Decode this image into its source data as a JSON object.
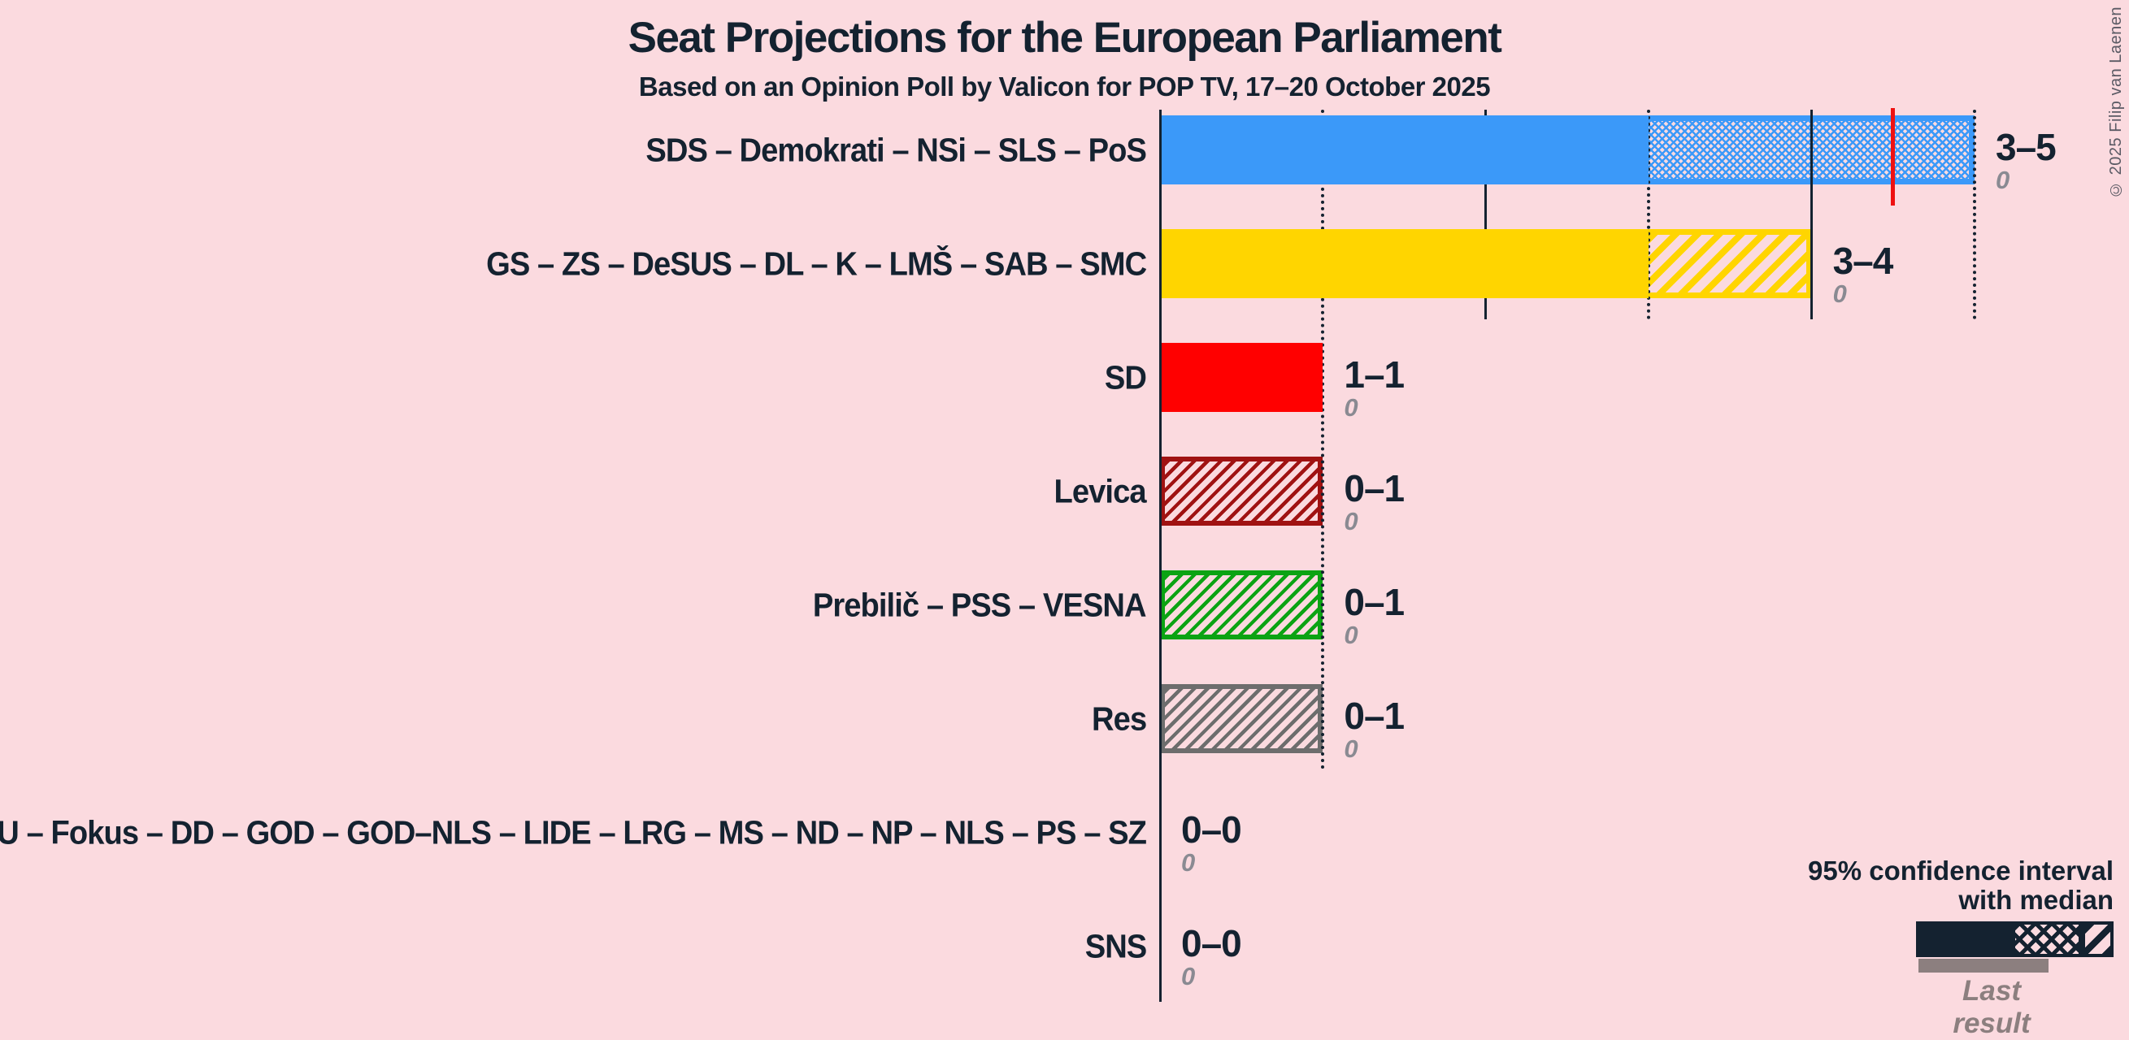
{
  "title": "Seat Projections for the European Parliament",
  "subtitle": "Based on an Opinion Poll by Valicon for POP TV, 17–20 October 2025",
  "copyright": "© 2025 Filip van Laenen",
  "colors": {
    "background": "#FBDADF",
    "text": "#142230",
    "last_result_gray": "#8A8A92",
    "legend_last_result_bar": "#8C7F7F",
    "majority_line_red": "#EE1111"
  },
  "legend": {
    "ci_line1": "95% confidence interval",
    "ci_line2": "with median",
    "last_result_label": "Last result"
  },
  "chart_data": {
    "type": "bar",
    "orientation": "horizontal",
    "title": "Seat Projections for the European Parliament",
    "subtitle": "Based on an Opinion Poll by Valicon for POP TV, 17–20 October 2025",
    "x_unit": "seats",
    "xlim": [
      0,
      5
    ],
    "majority_line_seats": 4.5,
    "gridlines": [
      {
        "seats": 0,
        "style": "solid",
        "role": "axis",
        "y_top": 135,
        "y_end": 1233
      },
      {
        "seats": 1,
        "style": "dotted",
        "y_top": 135,
        "y_end": 947
      },
      {
        "seats": 2,
        "style": "solid",
        "y_top": 135,
        "y_end": 393
      },
      {
        "seats": 3,
        "style": "dotted",
        "y_top": 135,
        "y_end": 393
      },
      {
        "seats": 4,
        "style": "solid",
        "y_top": 135,
        "y_end": 393
      },
      {
        "seats": 5,
        "style": "dotted",
        "y_top": 135,
        "y_end": 393
      }
    ],
    "rows": [
      {
        "label": "SDS – Demokrati – NSi – SLS – PoS",
        "color": "#3B99F9",
        "ci_low": 3,
        "median": 5,
        "ci_high": 5,
        "range_label": "3–5",
        "last_result": "0"
      },
      {
        "label": "GS – ZS – DeSUS – DL – K – LMŠ – SAB – SMC",
        "color": "#FFD500",
        "ci_low": 3,
        "median": 3,
        "ci_high": 4,
        "range_label": "3–4",
        "last_result": "0"
      },
      {
        "label": "SD",
        "color": "#FF0000",
        "ci_low": 1,
        "median": 1,
        "ci_high": 1,
        "range_label": "1–1",
        "last_result": "0"
      },
      {
        "label": "Levica",
        "color": "#A01212",
        "ci_low": 0,
        "median": 0,
        "ci_high": 1,
        "range_label": "0–1",
        "last_result": "0"
      },
      {
        "label": "Prebilič – PSS – VESNA",
        "color": "#0BA313",
        "ci_low": 0,
        "median": 0,
        "ci_high": 1,
        "range_label": "0–1",
        "last_result": "0"
      },
      {
        "label": "Res",
        "color": "#6D6D6D",
        "ci_low": 0,
        "median": 0,
        "ci_high": 1,
        "range_label": "0–1",
        "last_result": "0"
      },
      {
        "label": "GU – Fokus – DD – GOD – GOD–NLS – LIDE – LRG – MS – ND – NP – NLS – PS – SZ",
        "color": "#888888",
        "ci_low": 0,
        "median": 0,
        "ci_high": 0,
        "range_label": "0–0",
        "last_result": "0"
      },
      {
        "label": "SNS",
        "color": "#888888",
        "ci_low": 0,
        "median": 0,
        "ci_high": 0,
        "range_label": "0–0",
        "last_result": "0"
      }
    ]
  }
}
